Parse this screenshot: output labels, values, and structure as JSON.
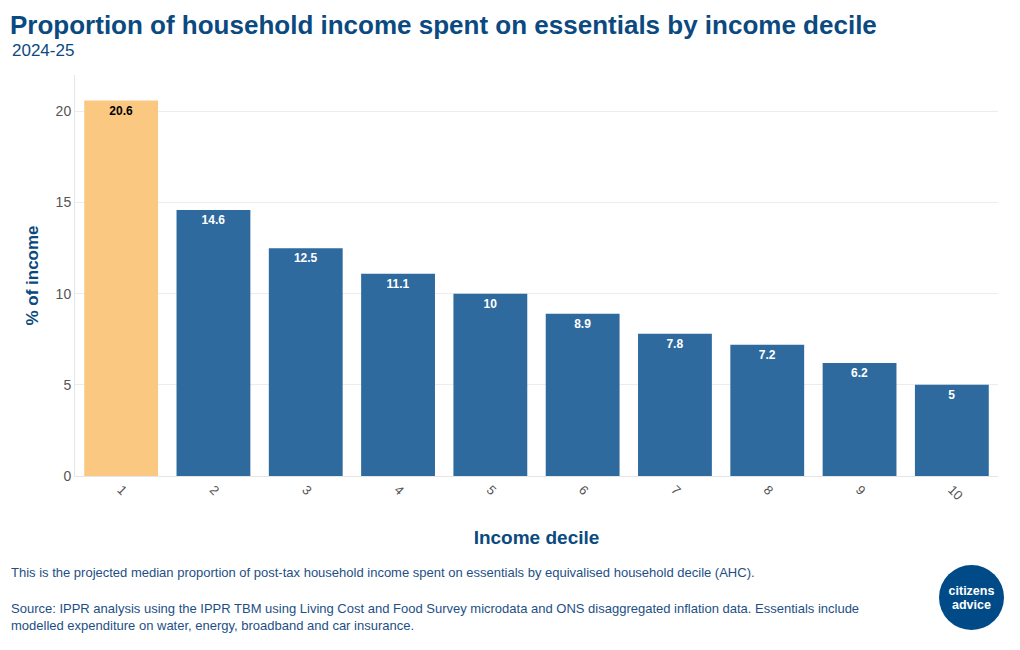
{
  "chart_data": {
    "type": "bar",
    "title": "Proportion of household income spent on essentials by income decile",
    "subtitle": "2024-25",
    "x_label": "Income decile",
    "y_label": "% of income",
    "categories": [
      "1",
      "2",
      "3",
      "4",
      "5",
      "6",
      "7",
      "8",
      "9",
      "10"
    ],
    "values": [
      20.6,
      14.6,
      12.5,
      11.1,
      10,
      8.9,
      7.8,
      7.2,
      6.2,
      5
    ],
    "colors": [
      "#fbc882",
      "#2e6a9e",
      "#2e6a9e",
      "#2e6a9e",
      "#2e6a9e",
      "#2e6a9e",
      "#2e6a9e",
      "#2e6a9e",
      "#2e6a9e",
      "#2e6a9e"
    ],
    "ylim": [
      0,
      22
    ],
    "yticks": [
      0,
      5,
      10,
      15,
      20
    ],
    "grid": true,
    "data_labels": true,
    "notes": [
      "This is the projected median proportion of post-tax household income spent on essentials by equivalised household decile (AHC).",
      "Source: IPPR analysis using the IPPR TBM using Living Cost and Food Survey microdata and ONS disaggregated inflation data. Essentials include modelled expenditure on water, energy, broadband and car insurance."
    ],
    "logo": "citizens advice"
  }
}
